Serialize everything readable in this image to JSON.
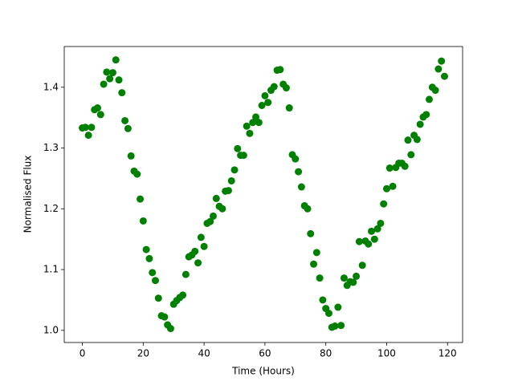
{
  "chart_data": {
    "type": "scatter",
    "xlabel": "Time (Hours)",
    "ylabel": "Normalised Flux",
    "color": "#008000",
    "x": [
      0,
      1,
      2,
      3,
      4,
      5,
      6,
      7,
      8,
      9,
      10,
      11,
      12,
      13,
      14,
      15,
      16,
      17,
      18,
      19,
      20,
      21,
      22,
      23,
      24,
      25,
      26,
      27,
      28,
      29,
      30,
      31,
      32,
      33,
      34,
      35,
      36,
      37,
      38,
      39,
      40,
      41,
      42,
      43,
      44,
      45,
      46,
      47,
      48,
      49,
      50,
      51,
      52,
      53,
      54,
      55,
      56,
      57,
      58,
      59,
      60,
      61,
      62,
      63,
      64,
      65,
      66,
      67,
      68,
      69,
      70,
      71,
      72,
      73,
      74,
      75,
      76,
      77,
      78,
      79,
      80,
      81,
      82,
      83,
      84,
      85,
      86,
      87,
      88,
      89,
      90,
      91,
      92,
      93,
      94,
      95,
      96,
      97,
      98,
      99,
      100,
      101,
      102,
      103,
      104,
      105,
      106,
      107,
      108,
      109,
      110,
      111,
      112,
      113,
      114,
      115,
      116,
      117,
      118,
      119
    ],
    "values": [
      1.333,
      1.334,
      1.321,
      1.334,
      1.363,
      1.366,
      1.355,
      1.405,
      1.425,
      1.414,
      1.424,
      1.445,
      1.412,
      1.391,
      1.345,
      1.332,
      1.287,
      1.262,
      1.257,
      1.216,
      1.18,
      1.133,
      1.118,
      1.095,
      1.082,
      1.053,
      1.024,
      1.022,
      1.009,
      1.003,
      1.043,
      1.049,
      1.054,
      1.058,
      1.092,
      1.121,
      1.124,
      1.13,
      1.111,
      1.153,
      1.138,
      1.176,
      1.179,
      1.188,
      1.217,
      1.204,
      1.2,
      1.229,
      1.23,
      1.246,
      1.264,
      1.299,
      1.288,
      1.288,
      1.336,
      1.324,
      1.342,
      1.351,
      1.342,
      1.37,
      1.386,
      1.375,
      1.395,
      1.401,
      1.428,
      1.429,
      1.405,
      1.399,
      1.366,
      1.289,
      1.282,
      1.261,
      1.236,
      1.205,
      1.2,
      1.159,
      1.109,
      1.128,
      1.086,
      1.05,
      1.036,
      1.028,
      1.005,
      1.007,
      1.038,
      1.008,
      1.086,
      1.074,
      1.08,
      1.079,
      1.089,
      1.146,
      1.107,
      1.147,
      1.142,
      1.163,
      1.15,
      1.167,
      1.176,
      1.208,
      1.233,
      1.267,
      1.237,
      1.268,
      1.275,
      1.275,
      1.27,
      1.313,
      1.289,
      1.321,
      1.314,
      1.339,
      1.351,
      1.355,
      1.38,
      1.4,
      1.395,
      1.43,
      1.443,
      1.418
    ],
    "xlim": [
      -5.95,
      124.95
    ],
    "ylim": [
      0.98,
      1.467
    ],
    "xticks": [
      0,
      20,
      40,
      60,
      80,
      100,
      120
    ],
    "yticks": [
      {
        "value": 1.0,
        "label": "1.0"
      },
      1.1,
      1.2,
      1.3,
      1.4
    ]
  }
}
